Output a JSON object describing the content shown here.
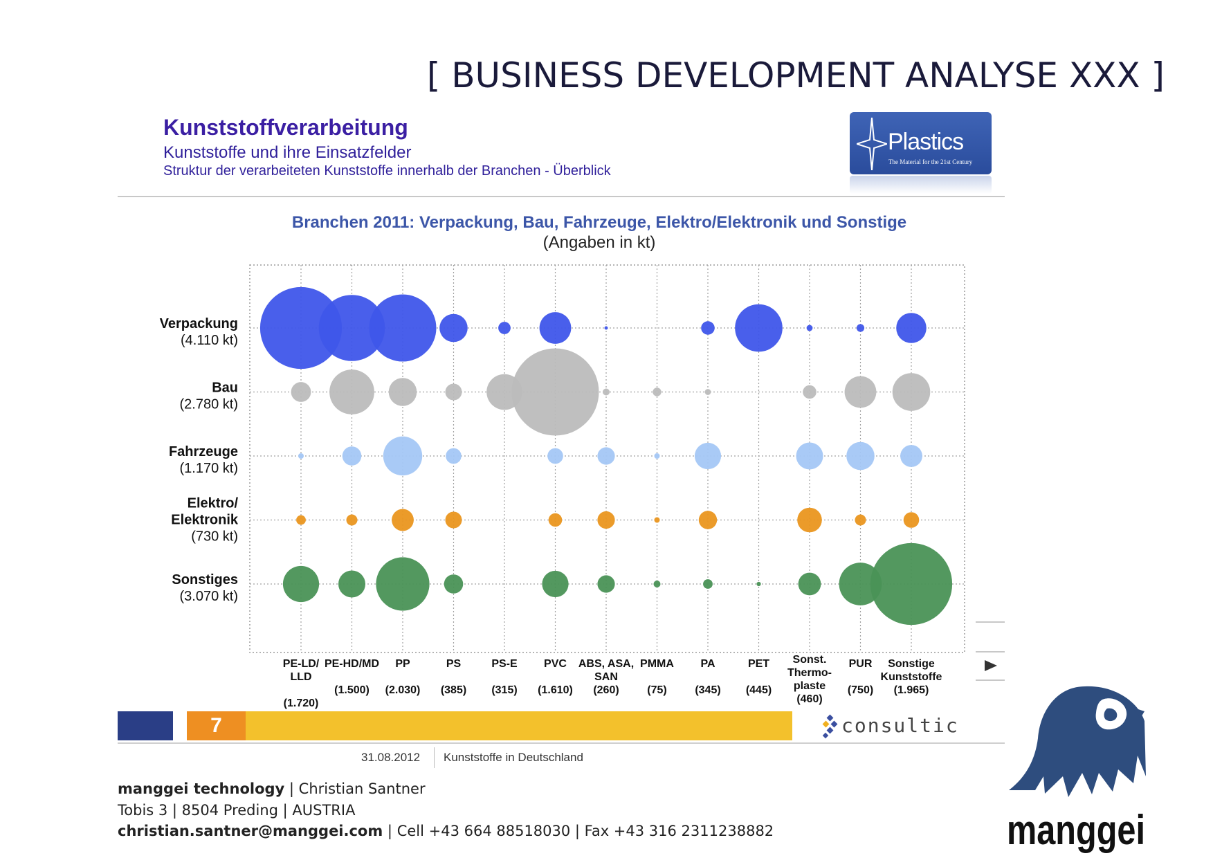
{
  "header": {
    "title": "[ BUSINESS DEVELOPMENT ANALYSE XXX ]"
  },
  "slide": {
    "title": "Kunststoffverarbeitung",
    "subtitle1": "Kunststoffe und ihre Einsatzfelder",
    "subtitle2": "Struktur der verarbeiteten Kunststoffe innerhalb der Branchen - Überblick",
    "plastics_logo": {
      "name": "Plastics",
      "tagline": "The Material for the 21st Century"
    },
    "page_number": "7",
    "consultic": "consultic",
    "date": "31.08.2012",
    "footer_text": "Kunststoffe in Deutschland"
  },
  "chart_data": {
    "type": "scatter",
    "subtype": "bubble-matrix",
    "title": "Branchen 2011: Verpackung, Bau, Fahrzeuge, Elektro/Elektronik und Sonstige",
    "subtitle": "(Angaben in kt)",
    "unit": "kt",
    "grid": true,
    "rows": [
      {
        "name": "Verpackung",
        "label_lines": [
          "Verpackung",
          "(4.110 kt)"
        ],
        "color": "#3f56ea"
      },
      {
        "name": "Bau",
        "label_lines": [
          "Bau",
          "(2.780 kt)"
        ],
        "color": "#bcbcbc"
      },
      {
        "name": "Fahrzeuge",
        "label_lines": [
          "Fahrzeuge",
          "(1.170 kt)"
        ],
        "color": "#a4c7f5"
      },
      {
        "name": "Elektro/Elektronik",
        "label_lines": [
          "Elektro/",
          "Elektronik",
          "(730 kt)"
        ],
        "color": "#ea961f"
      },
      {
        "name": "Sonstiges",
        "label_lines": [
          "Sonstiges",
          "(3.070 kt)"
        ],
        "color": "#4a9256"
      }
    ],
    "columns": [
      {
        "name": "PE-LD/LLD",
        "label_lines": [
          "PE-LD/",
          "LLD",
          "",
          "(1.720)"
        ]
      },
      {
        "name": "PE-HD/MD",
        "label_lines": [
          "PE-HD/MD",
          "",
          "(1.500)"
        ]
      },
      {
        "name": "PP",
        "label_lines": [
          "PP",
          "",
          "(2.030)"
        ]
      },
      {
        "name": "PS",
        "label_lines": [
          "PS",
          "",
          "(385)"
        ]
      },
      {
        "name": "PS-E",
        "label_lines": [
          "PS-E",
          "",
          "(315)"
        ]
      },
      {
        "name": "PVC",
        "label_lines": [
          "PVC",
          "",
          "(1.610)"
        ]
      },
      {
        "name": "ABS, ASA, SAN",
        "label_lines": [
          "ABS, ASA,",
          "SAN",
          "(260)"
        ]
      },
      {
        "name": "PMMA",
        "label_lines": [
          "PMMA",
          "",
          "(75)"
        ]
      },
      {
        "name": "PA",
        "label_lines": [
          "PA",
          "",
          "(345)"
        ]
      },
      {
        "name": "PET",
        "label_lines": [
          "PET",
          "",
          "(445)"
        ]
      },
      {
        "name": "Sonst. Thermoplaste",
        "label_lines": [
          "Sonst.",
          "Thermo-",
          "plaste",
          "(460)"
        ]
      },
      {
        "name": "PUR",
        "label_lines": [
          "PUR",
          "",
          "(750)"
        ]
      },
      {
        "name": "Sonstige Kunststoffe",
        "label_lines": [
          "Sonstige",
          "Kunststoffe",
          "(1.965)"
        ]
      }
    ],
    "values": [
      [
        1100,
        720,
        740,
        130,
        25,
        165,
        2,
        0,
        30,
        370,
        6,
        10,
        150
      ],
      [
        65,
        330,
        130,
        45,
        210,
        1250,
        8,
        12,
        6,
        0,
        30,
        165,
        235
      ],
      [
        5,
        60,
        250,
        40,
        0,
        40,
        50,
        5,
        115,
        0,
        120,
        130,
        80
      ],
      [
        15,
        20,
        80,
        45,
        0,
        30,
        50,
        5,
        55,
        0,
        100,
        20,
        40
      ],
      [
        215,
        120,
        470,
        60,
        0,
        115,
        50,
        8,
        15,
        3,
        85,
        300,
        1100
      ]
    ]
  },
  "contact": {
    "company": "manggei technology",
    "person": "Christian Santner",
    "address_line": "Tobis 3  |  8504 Preding  |  AUSTRIA",
    "email": "christian.santner@manggei.com",
    "phones": "Cell +43 664 88518030  |  Fax +43 316 2311238882"
  },
  "brand": {
    "name": "manggei"
  }
}
